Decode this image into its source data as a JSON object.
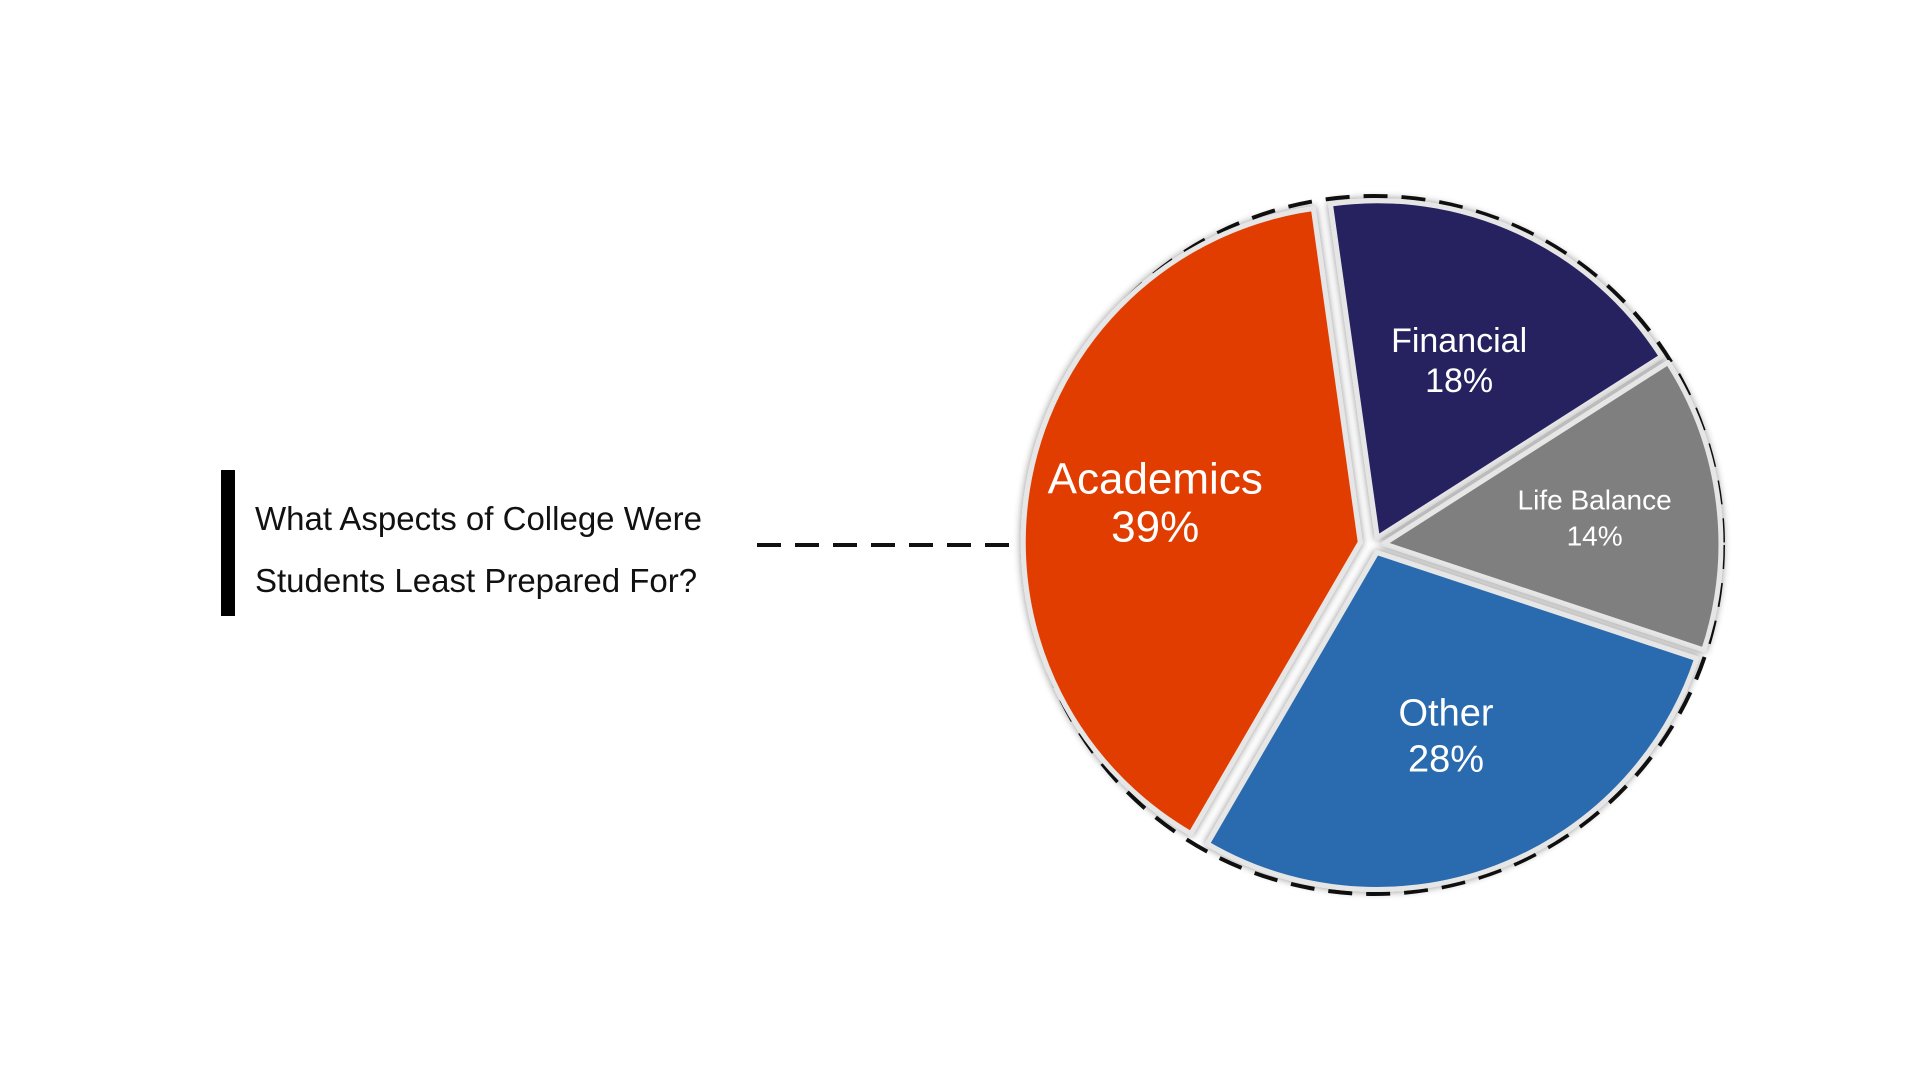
{
  "title": {
    "line1": "What Aspects of College Were",
    "line2": "Students Least Prepared For?"
  },
  "chart_data": {
    "type": "pie",
    "title": "What Aspects of College Were Students Least Prepared For?",
    "slices": [
      {
        "label": "Academics",
        "value": 39,
        "value_label": "39%",
        "color": "#e23e04"
      },
      {
        "label": "Financial",
        "value": 18,
        "value_label": "18%",
        "color": "#28215f"
      },
      {
        "label": "Life Balance",
        "value": 14,
        "value_label": "14%",
        "color": "#7f7f7f"
      },
      {
        "label": "Other",
        "value": 28,
        "value_label": "28%",
        "color": "#2a6aae"
      }
    ],
    "legend": "none",
    "labels_inside": true
  },
  "colors": {
    "separator": "#e6e6e6",
    "dashed_outline": "#111111",
    "title_bar": "#000000"
  }
}
